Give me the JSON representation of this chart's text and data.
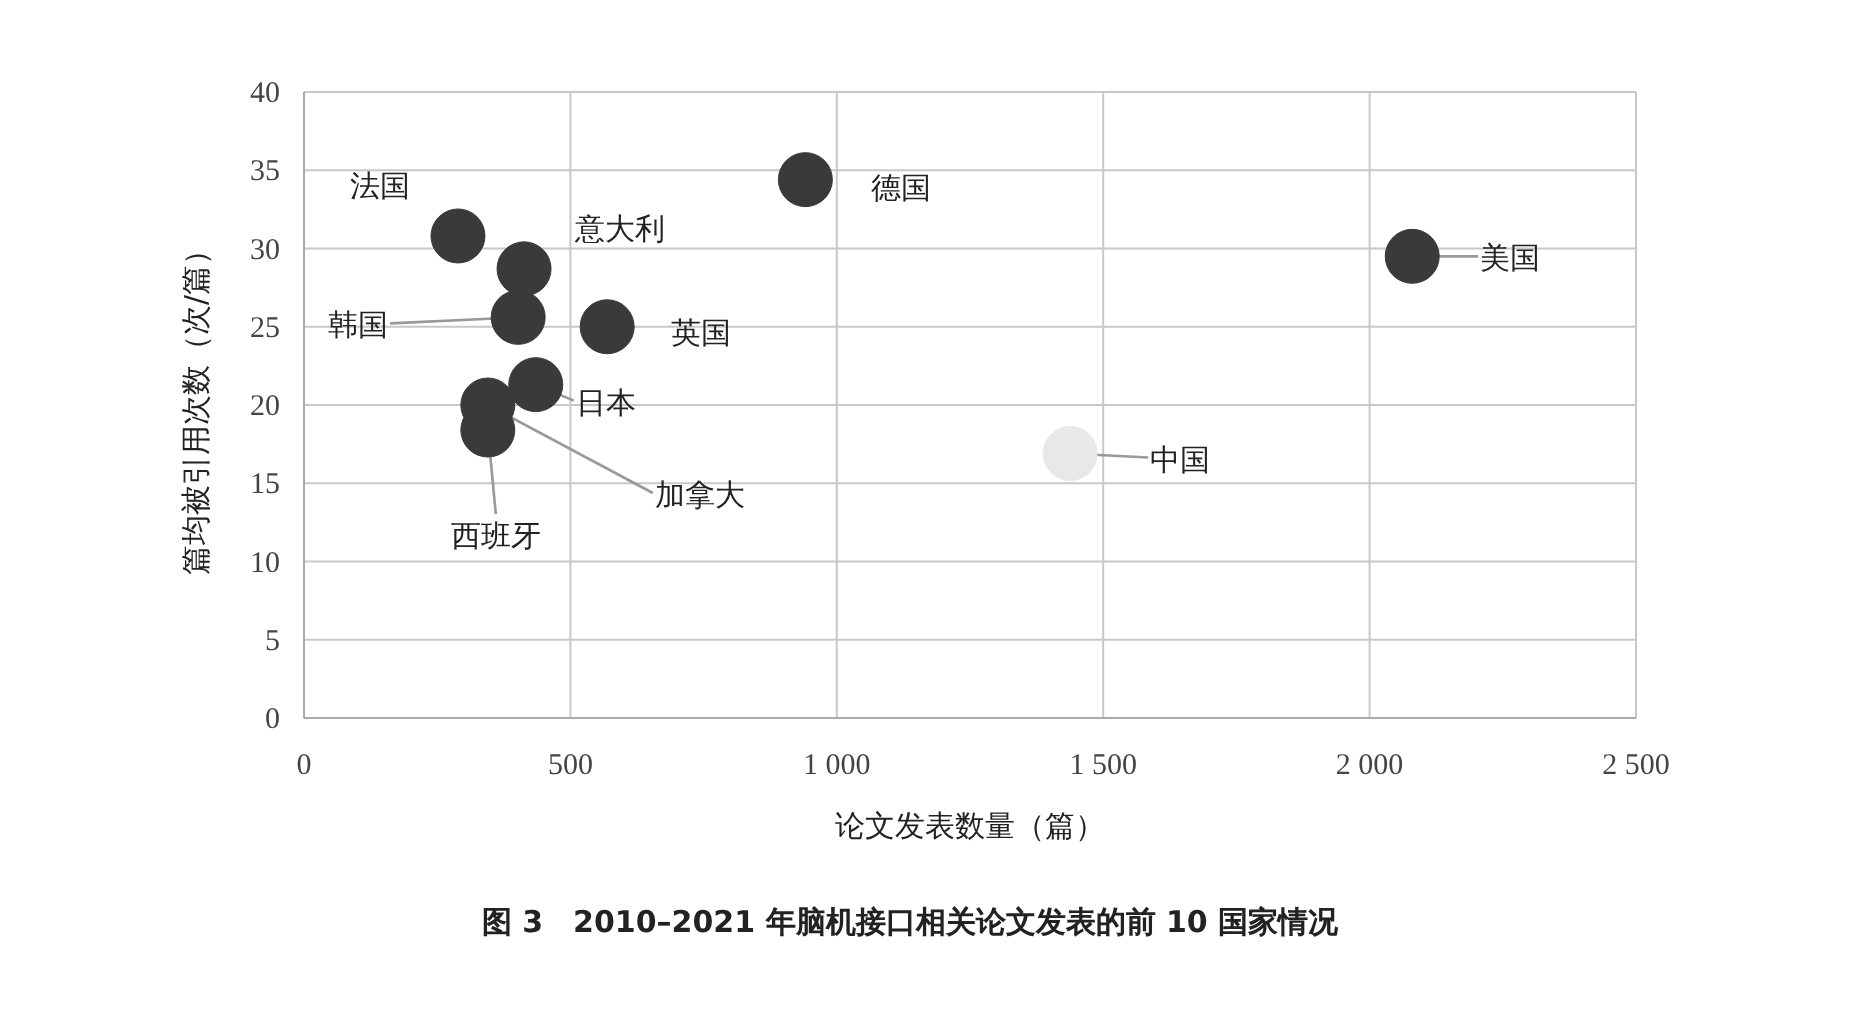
{
  "chart_data": {
    "type": "scatter",
    "title": "图 3　2010–2021 年脑机接口相关论文发表的前 10 国家情况",
    "xlabel": "论文发表数量（篇）",
    "ylabel": "篇均被引用次数（次/篇）",
    "x": [
      289,
      413,
      402,
      569,
      435,
      345,
      345,
      941,
      2080,
      1438
    ],
    "series": [
      {
        "values": [
          30.8,
          28.7,
          25.6,
          25.0,
          21.3,
          20.0,
          18.4,
          34.4,
          29.5,
          16.9
        ],
        "colors": [
          "#3a3a3a",
          "#3a3a3a",
          "#3a3a3a",
          "#3a3a3a",
          "#3a3a3a",
          "#3a3a3a",
          "#3a3a3a",
          "#3a3a3a",
          "#3a3a3a",
          "#e8e8e8"
        ]
      }
    ],
    "annotations": [
      {
        "text": "法国",
        "x": 289,
        "y": 30.8
      },
      {
        "text": "意大利",
        "x": 413,
        "y": 28.7
      },
      {
        "text": "韩国",
        "x": 402,
        "y": 25.6
      },
      {
        "text": "英国",
        "x": 569,
        "y": 25.0
      },
      {
        "text": "日本",
        "x": 435,
        "y": 21.3
      },
      {
        "text": "加拿大",
        "x": 345,
        "y": 20.0
      },
      {
        "text": "西班牙",
        "x": 345,
        "y": 18.4
      },
      {
        "text": "德国",
        "x": 941,
        "y": 34.4
      },
      {
        "text": "美国",
        "x": 2080,
        "y": 29.5
      },
      {
        "text": "中国",
        "x": 1438,
        "y": 16.9
      }
    ],
    "xlim": [
      0,
      2500
    ],
    "xticks": [
      0,
      500,
      {
        "value": 1000,
        "label": "1 000"
      },
      {
        "value": 1500,
        "label": "1 500"
      },
      {
        "value": 2000,
        "label": "2 000"
      },
      {
        "value": 2500,
        "label": "2 500"
      }
    ],
    "ylim": [
      0,
      40
    ],
    "yticks": [
      0,
      5,
      10,
      15,
      20,
      25,
      30,
      35,
      40
    ],
    "grid": true,
    "marker": "circle"
  }
}
